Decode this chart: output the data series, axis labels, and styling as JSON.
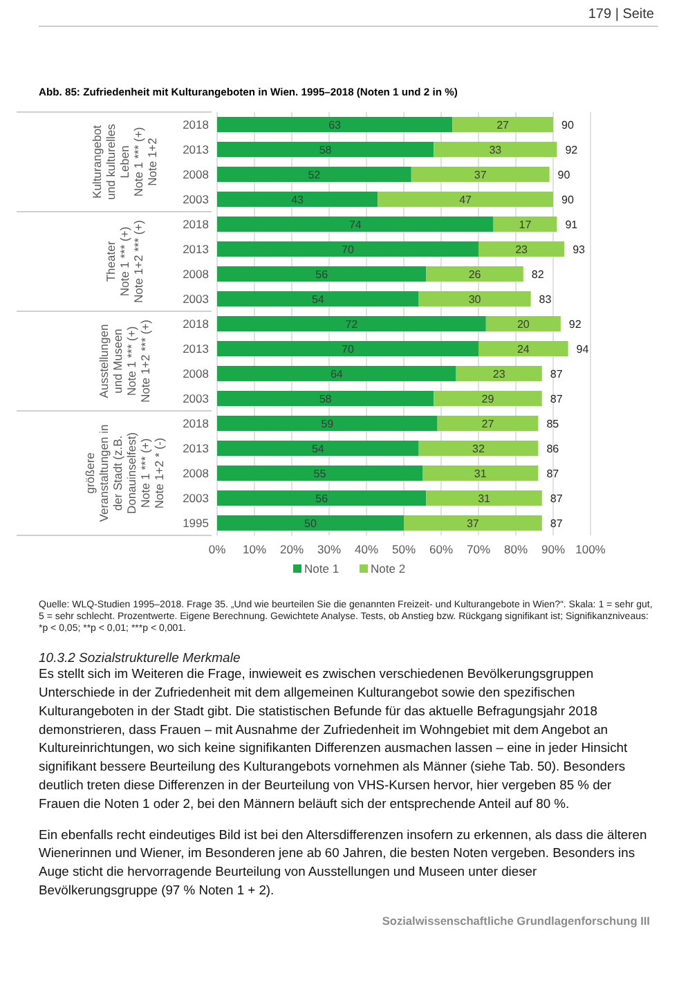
{
  "chart_data": [
    {
      "type": "bar",
      "orientation": "horizontal",
      "stacked": true,
      "title": "Abb. 85: Zufriedenheit mit Kulturangeboten in Wien. 1995–2018 (Noten 1 und 2 in %)",
      "ylabel": "Kulturangebot\nund kulturelles\nLeben\nNote 1 *** (+)\nNote 1+2",
      "annotations": [
        "179 | Seite"
      ],
      "categories": [
        "2018",
        "2013",
        "2008",
        "2003"
      ],
      "series": [
        {
          "color": "#1aa84a",
          "values": [
            63,
            58,
            52,
            43
          ]
        },
        {
          "color": "#92d050",
          "values": [
            27,
            33,
            37,
            47
          ]
        }
      ],
      "totals": [
        "90",
        "92",
        "90",
        "90"
      ],
      "data_labels": true,
      "xlim": [
        0,
        100
      ],
      "xticks": [
        0,
        10,
        20,
        30,
        40,
        50,
        60,
        70,
        80,
        90,
        100
      ],
      "grid": "x",
      "tick_labels": "y"
    },
    {
      "type": "bar",
      "orientation": "horizontal",
      "stacked": true,
      "ylabel": "Theater\nNote 1 *** (+)\nNote 1+2 *** (+)",
      "categories": [
        "2018",
        "2013",
        "2008",
        "2003"
      ],
      "series": [
        {
          "color": "#1aa84a",
          "values": [
            74,
            70,
            56,
            54
          ]
        },
        {
          "color": "#92d050",
          "values": [
            17,
            23,
            26,
            30
          ]
        }
      ],
      "totals": [
        "91",
        "93",
        "82",
        "83"
      ],
      "data_labels": true,
      "xlim": [
        0,
        100
      ],
      "xticks": [
        0,
        10,
        20,
        30,
        40,
        50,
        60,
        70,
        80,
        90,
        100
      ],
      "grid": "x",
      "tick_labels": "y"
    },
    {
      "type": "bar",
      "orientation": "horizontal",
      "stacked": true,
      "ylabel": "Ausstellungen\nund Museen\nNote 1 *** (+)\nNote 1+2 *** (+)",
      "categories": [
        "2018",
        "2013",
        "2008",
        "2003"
      ],
      "series": [
        {
          "color": "#1aa84a",
          "values": [
            72,
            70,
            64,
            58
          ]
        },
        {
          "color": "#92d050",
          "values": [
            20,
            24,
            23,
            29
          ]
        }
      ],
      "totals": [
        "92",
        "94",
        "87",
        "87"
      ],
      "data_labels": true,
      "xlim": [
        0,
        100
      ],
      "xticks": [
        0,
        10,
        20,
        30,
        40,
        50,
        60,
        70,
        80,
        90,
        100
      ],
      "grid": "x",
      "tick_labels": "y"
    },
    {
      "type": "bar",
      "orientation": "horizontal",
      "stacked": true,
      "ylabel": "größere\nVeranstaltungen in\nder Stadt (z.B.\nDonauinselfest)\nNote 1 *** (+)\nNote 1+2 * (-)",
      "categories": [
        "2018",
        "2013",
        "2008",
        "2003",
        "1995"
      ],
      "series": [
        {
          "name": "Note 1",
          "color": "#1aa84a",
          "values": [
            59,
            54,
            55,
            56,
            50
          ]
        },
        {
          "name": "Note 2",
          "color": "#92d050",
          "values": [
            27,
            32,
            31,
            31,
            37
          ]
        }
      ],
      "totals": [
        "85",
        "86",
        "87",
        "87",
        "87"
      ],
      "data_labels": true,
      "xlim": [
        0,
        100
      ],
      "xticks": [
        {
          "value": 0,
          "label": "0%"
        },
        {
          "value": 10,
          "label": "10%"
        },
        {
          "value": 20,
          "label": "20%"
        },
        {
          "value": 30,
          "label": "30%"
        },
        {
          "value": 40,
          "label": "40%"
        },
        {
          "value": 50,
          "label": "50%"
        },
        {
          "value": 60,
          "label": "60%"
        },
        {
          "value": 70,
          "label": "70%"
        },
        {
          "value": 80,
          "label": "80%"
        },
        {
          "value": 90,
          "label": "90%"
        },
        {
          "value": 100,
          "label": "100%"
        }
      ],
      "grid": "x",
      "legend": "bottom",
      "annotations": [
        "Quelle: WLQ-Studien 1995–2018. Frage 35. „Und wie beurteilen Sie die genannten Freizeit- und Kulturangebote in Wien?“. Skala: 1 = sehr gut, 5 = sehr schlecht. Prozentwerte. Eigene Berechnung. Gewichtete Analyse. Tests, ob Anstieg bzw. Rückgang signifikant ist; Signifikanzniveaus: *p < 0,05; **p < 0,01; ***p < 0,001.",
        "10.3.2 Sozialstrukturelle Merkmale",
        "Es stellt sich im Weiteren die Frage, inwieweit es zwischen verschiedenen Bevölkerungsgruppen Unterschiede in der Zufriedenheit mit dem allgemeinen Kulturangebot sowie den spezifischen Kulturangeboten in der Stadt gibt. Die statistischen Befunde für das aktuelle Befragungsjahr 2018 demonstrieren, dass Frauen – mit Ausnahme der Zufriedenheit im Wohngebiet mit dem Angebot an Kultureinrichtungen, wo sich keine signifikanten Differenzen ausmachen lassen – eine in jeder Hinsicht signifikant bessere Beurteilung des Kulturangebots vornehmen als Männer (siehe Tab. 50). Besonders deutlich treten diese Differenzen in der Beurteilung von VHS-Kursen hervor, hier vergeben 85 % der Frauen die Noten 1 oder 2, bei den Männern beläuft sich der entsprechende Anteil auf 80 %.",
        "Ein ebenfalls recht eindeutiges Bild ist bei den Altersdifferenzen insofern zu erkennen, als dass die älteren Wienerinnen und Wiener, im Besonderen jene ab 60 Jahren, die besten Noten vergeben. Besonders ins Auge sticht die hervorragende Beurteilung von Ausstellungen und Museen unter dieser Bevölkerungsgruppe (97 % Noten 1 + 2).",
        "Sozialwissenschaftliche Grundlagenforschung III"
      ]
    }
  ]
}
